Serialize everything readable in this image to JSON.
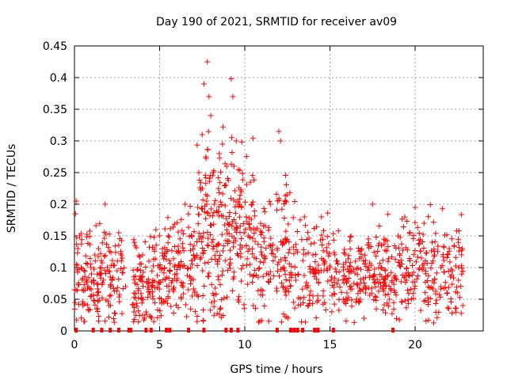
{
  "chart_data": {
    "type": "scatter",
    "title": "Day 190 of 2021, SRMTID for receiver av09",
    "xlabel": "GPS time / hours",
    "ylabel": "SRMTID / TECUs",
    "xlim": [
      0,
      24
    ],
    "ylim": [
      0,
      0.45
    ],
    "x_ticks": [
      0,
      5,
      10,
      15,
      20
    ],
    "x_tick_labels": [
      "0",
      "5",
      "10",
      "15",
      "20"
    ],
    "y_ticks": [
      0,
      0.05,
      0.1,
      0.15,
      0.2,
      0.25,
      0.3,
      0.35,
      0.4,
      0.45
    ],
    "y_tick_labels": [
      "0",
      "0.05",
      "0.1",
      "0.15",
      "0.2",
      "0.25",
      "0.3",
      "0.35",
      "0.4",
      "0.45"
    ],
    "grid": true,
    "marker": "+",
    "color": "#ff0000",
    "zero_line_marks_x": [
      0.1,
      1.1,
      1.6,
      2.1,
      2.6,
      3.2,
      3.3,
      4.2,
      4.5,
      5.4,
      5.6,
      6.7,
      7.6,
      8.9,
      9.2,
      9.6,
      11.9,
      12.7,
      12.9,
      13.1,
      13.4,
      14.1,
      14.3,
      15.2,
      18.7
    ],
    "sample_points": [
      {
        "x": 0.1,
        "y": 0.205
      },
      {
        "x": 0.2,
        "y": 0.13
      },
      {
        "x": 0.3,
        "y": 0.15
      },
      {
        "x": 0.4,
        "y": 0.1
      },
      {
        "x": 0.5,
        "y": 0.04
      },
      {
        "x": 0.6,
        "y": 0.015
      },
      {
        "x": 0.8,
        "y": 0.07
      },
      {
        "x": 1.0,
        "y": 0.09
      },
      {
        "x": 1.2,
        "y": 0.12
      },
      {
        "x": 1.5,
        "y": 0.1
      },
      {
        "x": 1.8,
        "y": 0.2
      },
      {
        "x": 2.2,
        "y": 0.08
      },
      {
        "x": 2.6,
        "y": 0.155
      },
      {
        "x": 3.0,
        "y": 0.07
      },
      {
        "x": 3.5,
        "y": 0.06
      },
      {
        "x": 4.0,
        "y": 0.12
      },
      {
        "x": 4.2,
        "y": 0.03
      },
      {
        "x": 4.6,
        "y": 0.08
      },
      {
        "x": 5.0,
        "y": 0.1
      },
      {
        "x": 5.5,
        "y": 0.15
      },
      {
        "x": 6.0,
        "y": 0.09
      },
      {
        "x": 6.5,
        "y": 0.2
      },
      {
        "x": 7.0,
        "y": 0.12
      },
      {
        "x": 7.3,
        "y": 0.25
      },
      {
        "x": 7.5,
        "y": 0.31
      },
      {
        "x": 7.6,
        "y": 0.39
      },
      {
        "x": 7.8,
        "y": 0.425
      },
      {
        "x": 7.9,
        "y": 0.37
      },
      {
        "x": 8.0,
        "y": 0.34
      },
      {
        "x": 8.2,
        "y": 0.2
      },
      {
        "x": 8.5,
        "y": 0.28
      },
      {
        "x": 9.0,
        "y": 0.17
      },
      {
        "x": 9.2,
        "y": 0.398
      },
      {
        "x": 9.3,
        "y": 0.37
      },
      {
        "x": 9.5,
        "y": 0.3
      },
      {
        "x": 9.8,
        "y": 0.22
      },
      {
        "x": 10.2,
        "y": 0.15
      },
      {
        "x": 10.5,
        "y": 0.04
      },
      {
        "x": 11.0,
        "y": 0.12
      },
      {
        "x": 11.5,
        "y": 0.2
      },
      {
        "x": 12.0,
        "y": 0.315
      },
      {
        "x": 12.1,
        "y": 0.3
      },
      {
        "x": 12.3,
        "y": 0.1
      },
      {
        "x": 13.0,
        "y": 0.08
      },
      {
        "x": 13.5,
        "y": 0.18
      },
      {
        "x": 14.0,
        "y": 0.12
      },
      {
        "x": 14.5,
        "y": 0.18
      },
      {
        "x": 15.0,
        "y": 0.1
      },
      {
        "x": 15.5,
        "y": 0.08
      },
      {
        "x": 16.0,
        "y": 0.06
      },
      {
        "x": 16.5,
        "y": 0.11
      },
      {
        "x": 17.0,
        "y": 0.02
      },
      {
        "x": 17.5,
        "y": 0.2
      },
      {
        "x": 18.0,
        "y": 0.1
      },
      {
        "x": 18.5,
        "y": 0.05
      },
      {
        "x": 19.0,
        "y": 0.15
      },
      {
        "x": 19.5,
        "y": 0.08
      },
      {
        "x": 20.0,
        "y": 0.195
      },
      {
        "x": 20.5,
        "y": 0.1
      },
      {
        "x": 21.0,
        "y": 0.14
      },
      {
        "x": 21.5,
        "y": 0.07
      },
      {
        "x": 22.0,
        "y": 0.13
      },
      {
        "x": 22.5,
        "y": 0.06
      },
      {
        "x": 22.8,
        "y": 0.04
      }
    ],
    "density_profile": [
      {
        "x0": 0.0,
        "x1": 1.8,
        "center": 0.09,
        "spread": 0.045,
        "count": 110
      },
      {
        "x0": 1.8,
        "x1": 3.0,
        "center": 0.085,
        "spread": 0.04,
        "count": 60
      },
      {
        "x0": 3.4,
        "x1": 4.6,
        "center": 0.075,
        "spread": 0.035,
        "count": 80
      },
      {
        "x0": 4.6,
        "x1": 5.5,
        "center": 0.09,
        "spread": 0.035,
        "count": 60
      },
      {
        "x0": 5.5,
        "x1": 7.2,
        "center": 0.1,
        "spread": 0.045,
        "count": 100
      },
      {
        "x0": 7.2,
        "x1": 9.0,
        "center": 0.16,
        "spread": 0.07,
        "count": 150
      },
      {
        "x0": 9.0,
        "x1": 10.5,
        "center": 0.16,
        "spread": 0.06,
        "count": 110
      },
      {
        "x0": 10.5,
        "x1": 12.5,
        "center": 0.13,
        "spread": 0.05,
        "count": 120
      },
      {
        "x0": 12.5,
        "x1": 15.0,
        "center": 0.11,
        "spread": 0.04,
        "count": 120
      },
      {
        "x0": 15.0,
        "x1": 19.0,
        "center": 0.085,
        "spread": 0.035,
        "count": 220
      },
      {
        "x0": 19.0,
        "x1": 22.8,
        "center": 0.1,
        "spread": 0.04,
        "count": 200
      }
    ]
  }
}
